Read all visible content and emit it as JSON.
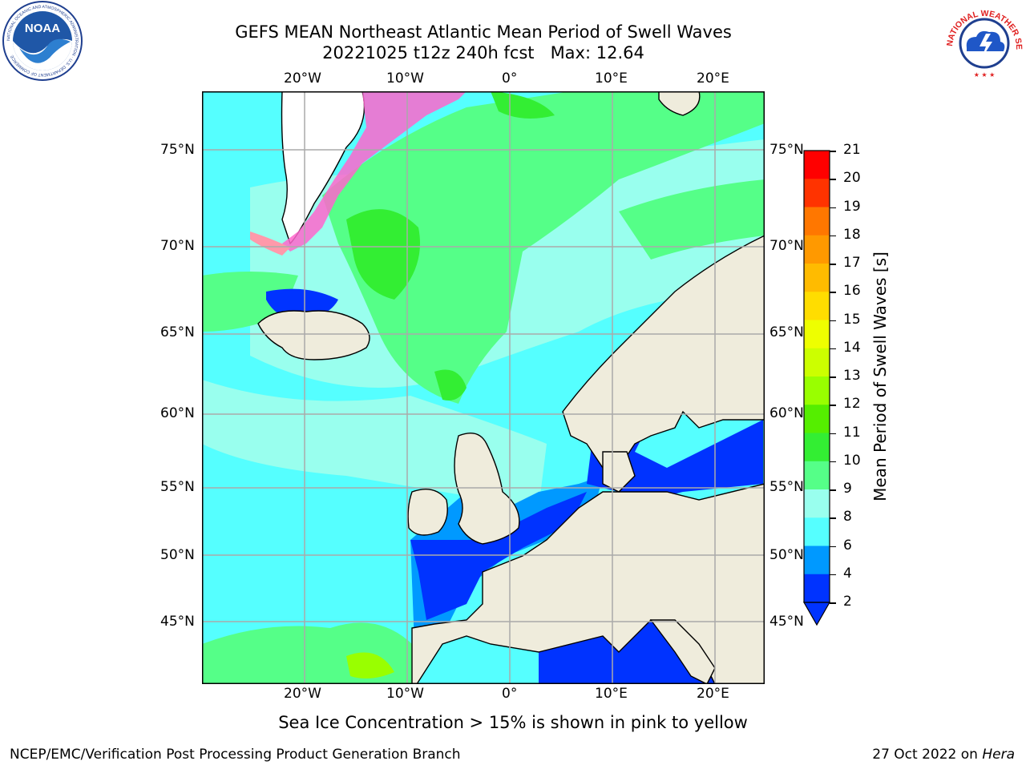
{
  "header": {
    "title_line1": "GEFS MEAN Northeast Atlantic Mean Period of Swell Waves",
    "title_line2": "20221025 t12z 240h fcst   Max: 12.64"
  },
  "logos": {
    "left": {
      "name": "NOAA",
      "ring_text": "NATIONAL OCEANIC AND ATMOSPHERIC ADMINISTRATION · U.S. DEPARTMENT OF COMMERCE"
    },
    "right": {
      "name": "NATIONAL WEATHER SERVICE"
    }
  },
  "map": {
    "lon_top": [
      "20°W",
      "10°W",
      "0°",
      "10°E",
      "20°E"
    ],
    "lon_bottom": [
      "20°W",
      "10°W",
      "0°",
      "10°E",
      "20°E"
    ],
    "lat_left": [
      "75°N",
      "70°N",
      "65°N",
      "60°N",
      "55°N",
      "50°N",
      "45°N"
    ],
    "lat_right": [
      "75°N",
      "70°N",
      "65°N",
      "60°N",
      "55°N",
      "50°N",
      "45°N"
    ],
    "land_color": "#efecdc",
    "ice_color": "#ff66cc"
  },
  "colorbar": {
    "label": "Mean Period of Swell Waves [s]",
    "ticks": [
      "21",
      "20",
      "19",
      "18",
      "17",
      "16",
      "15",
      "14",
      "13",
      "12",
      "11",
      "10",
      "9",
      "8",
      "6",
      "4",
      "2"
    ],
    "colors": [
      "#ff0000",
      "#ff3300",
      "#ff5500",
      "#ff7700",
      "#ff9900",
      "#ffbb00",
      "#ffdd00",
      "#ffff00",
      "#eeff00",
      "#ccff00",
      "#99ff00",
      "#55ee00",
      "#00dd00",
      "#33ee33",
      "#55ff88",
      "#99ffee",
      "#55ffff",
      "#00eeff",
      "#0099ff",
      "#0033ff"
    ]
  },
  "note": "Sea Ice Concentration > 15% is shown in pink to yellow",
  "footer": {
    "left": "NCEP/EMC/Verification Post Processing Product Generation Branch",
    "right_prefix": "27 Oct 2022 on ",
    "right_host": "Hera"
  }
}
